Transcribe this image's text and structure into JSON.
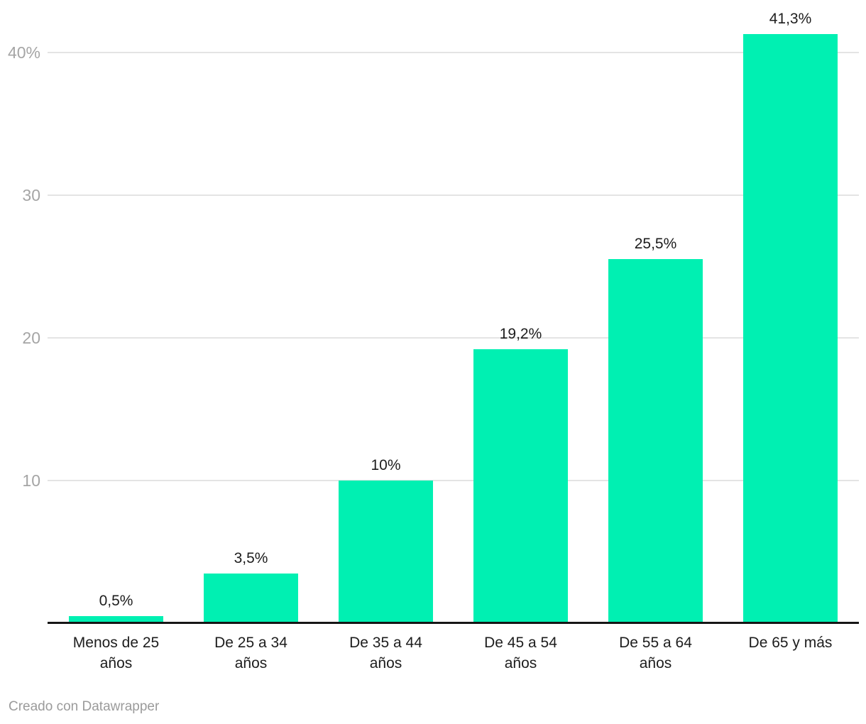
{
  "chart_data": {
    "type": "bar",
    "title": "",
    "xlabel": "",
    "ylabel": "",
    "categories": [
      "Menos de 25 años",
      "De 25 a 34 años",
      "De 35 a 44 años",
      "De 45 a 54 años",
      "De 55 a 64 años",
      "De 65 y más"
    ],
    "category_lines": [
      [
        "Menos de 25",
        "años"
      ],
      [
        "De 25 a 34",
        "años"
      ],
      [
        "De 35 a 44",
        "años"
      ],
      [
        "De 45 a 54",
        "años"
      ],
      [
        "De 55 a 64",
        "años"
      ],
      [
        "De 65 y más"
      ]
    ],
    "values": [
      0.5,
      3.5,
      10,
      19.2,
      25.5,
      41.3
    ],
    "value_labels": [
      "0,5%",
      "3,5%",
      "10%",
      "19,2%",
      "25,5%",
      "41,3%"
    ],
    "ylim": [
      0,
      43.7
    ],
    "yticks": [
      {
        "value": 10,
        "label": "10"
      },
      {
        "value": 20,
        "label": "20"
      },
      {
        "value": 30,
        "label": "30"
      },
      {
        "value": 40,
        "label": "40%"
      }
    ],
    "grid": true,
    "legend_position": "none",
    "colors": {
      "bar": "#00f0b2",
      "grid": "#e4e4e4",
      "axis": "#161616",
      "y_tick_text": "#a5a5a5",
      "x_tick_text": "#1d1d1d",
      "value_label_text": "#1d1d1d"
    }
  },
  "footer": {
    "credit": "Creado con Datawrapper"
  }
}
